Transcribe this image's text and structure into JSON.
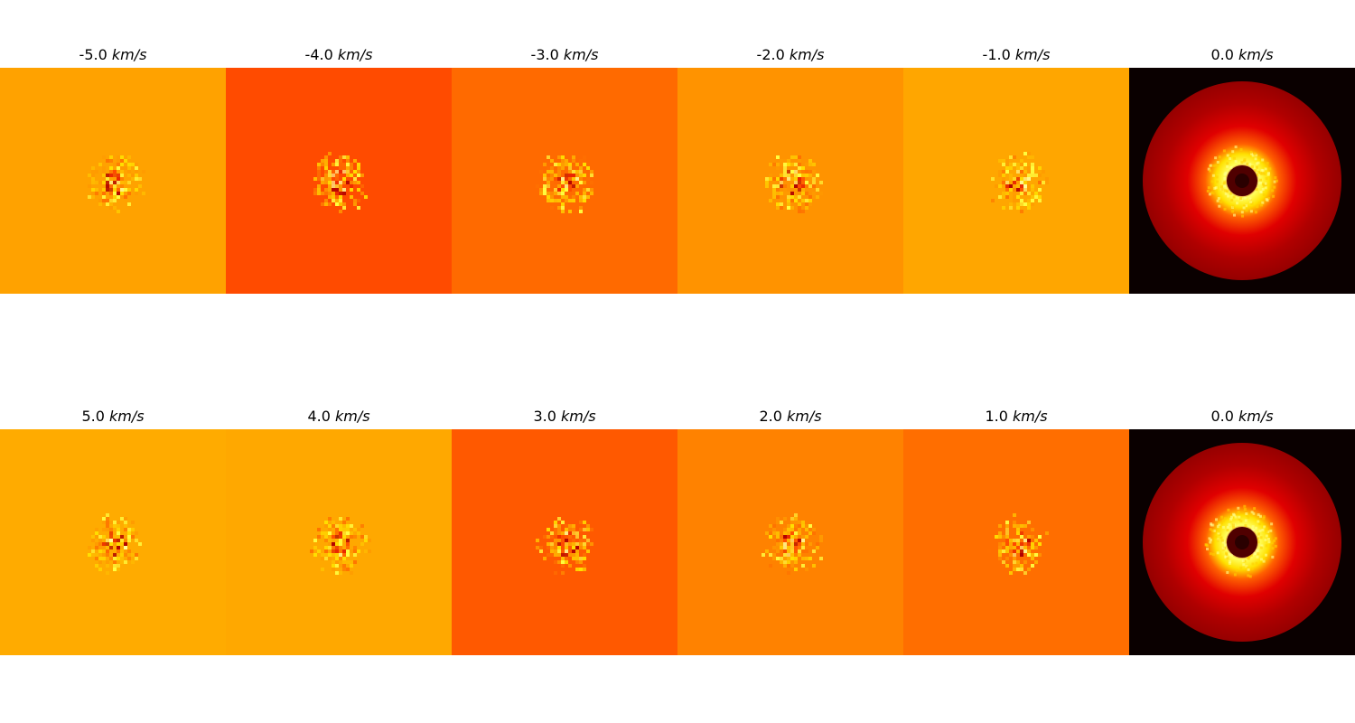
{
  "rows": [
    {
      "panels": [
        {
          "velocity": "-5.0",
          "unit": "km/s",
          "kind": "channel",
          "background": "#ffa200",
          "blob_bg": "#ffa200"
        },
        {
          "velocity": "-4.0",
          "unit": "km/s",
          "kind": "channel",
          "background": "#ff4b00",
          "blob_bg": "#ff4b00"
        },
        {
          "velocity": "-3.0",
          "unit": "km/s",
          "kind": "channel",
          "background": "#ff6a00",
          "blob_bg": "#ff6a00"
        },
        {
          "velocity": "-2.0",
          "unit": "km/s",
          "kind": "channel",
          "background": "#ff9300",
          "blob_bg": "#ff9300"
        },
        {
          "velocity": "-1.0",
          "unit": "km/s",
          "kind": "channel",
          "background": "#ffa600",
          "blob_bg": "#ffa600"
        },
        {
          "velocity": "0.0",
          "unit": "km/s",
          "kind": "moment",
          "background": "#0a0000",
          "blob_bg": "#0a0000"
        }
      ]
    },
    {
      "panels": [
        {
          "velocity": "5.0",
          "unit": "km/s",
          "kind": "channel",
          "background": "#ffab00",
          "blob_bg": "#ffab00"
        },
        {
          "velocity": "4.0",
          "unit": "km/s",
          "kind": "channel",
          "background": "#ffa800",
          "blob_bg": "#ffa800"
        },
        {
          "velocity": "3.0",
          "unit": "km/s",
          "kind": "channel",
          "background": "#ff5900",
          "blob_bg": "#ff5900"
        },
        {
          "velocity": "2.0",
          "unit": "km/s",
          "kind": "channel",
          "background": "#ff8200",
          "blob_bg": "#ff8200"
        },
        {
          "velocity": "1.0",
          "unit": "km/s",
          "kind": "channel",
          "background": "#ff6e00",
          "blob_bg": "#ff6e00"
        },
        {
          "velocity": "0.0",
          "unit": "km/s",
          "kind": "moment",
          "background": "#0a0000",
          "blob_bg": "#0a0000"
        }
      ]
    }
  ],
  "colormap": "hot"
}
